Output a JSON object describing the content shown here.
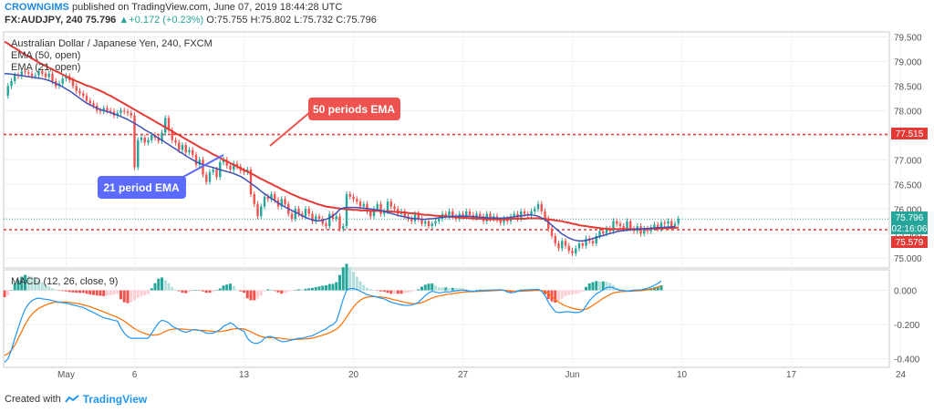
{
  "header": {
    "author": "CROWNGIMS",
    "published_text": "published on TradingView.com, June 07, 2019 18:44:28 UTC",
    "symbol": "FX:AUDJPY, 240",
    "last": "75.796",
    "change_arrow": "▲",
    "change": "+0.172 (+0.23%)",
    "ohlc": [
      "O:75.755",
      "H:75.802",
      "L:75.732",
      "C:75.796"
    ]
  },
  "legend": {
    "instrument": "Australian Dollar / Japanese Yen, 240, FXCM",
    "ema50": "EMA (50, open)",
    "ema21": "EMA (21, open)"
  },
  "annotations": {
    "ema50_callout": "50 periods EMA",
    "ema21_callout": "21 period EMA"
  },
  "badges": {
    "resistance": "77.515",
    "price": "75.796",
    "countdown": "02:16:06",
    "support": "75.579"
  },
  "macd_legend": "MACD (12, 26, close, 9)",
  "footer": {
    "created_with": "Created with",
    "brand": "TradingView"
  },
  "colors": {
    "up": "#26a69a",
    "down": "#ef5350",
    "ema50": "#e53935",
    "ema21": "#3f51b5",
    "macd": "#2196f3",
    "signal": "#ff6d00",
    "level": "#e53935",
    "callout_red": "#ef5350",
    "callout_blue": "#5c6bff"
  },
  "chart_data": [
    {
      "type": "line",
      "name": "price",
      "ylim": [
        74.8,
        79.6
      ],
      "y_ticks": [
        "79.500",
        "79.000",
        "78.500",
        "78.000",
        "77.500",
        "77.000",
        "76.500",
        "76.000",
        "75.500",
        "75.000"
      ],
      "y_tick_values": [
        79.5,
        79.0,
        78.5,
        78.0,
        77.5,
        77.0,
        76.5,
        76.0,
        75.5,
        75.0
      ],
      "x_ticks": [
        "May",
        "6",
        "13",
        "20",
        "27",
        "Jun",
        "10",
        "17",
        "24"
      ],
      "x_tick_index": [
        18,
        38,
        70,
        102,
        134,
        166,
        198,
        230,
        262
      ],
      "horizontal_levels": [
        77.515,
        75.579
      ],
      "close": [
        78.3,
        78.5,
        78.6,
        78.72,
        78.7,
        78.8,
        78.78,
        78.75,
        78.7,
        78.72,
        78.8,
        78.75,
        78.68,
        78.75,
        78.6,
        78.5,
        78.55,
        78.65,
        78.7,
        78.62,
        78.5,
        78.4,
        78.35,
        78.3,
        78.2,
        78.15,
        78.1,
        78.0,
        77.98,
        78.05,
        78.0,
        77.98,
        77.9,
        77.95,
        78.0,
        77.98,
        77.95,
        77.9,
        76.85,
        77.4,
        77.45,
        77.35,
        77.4,
        77.5,
        77.45,
        77.38,
        77.55,
        77.85,
        77.6,
        77.4,
        77.35,
        77.2,
        77.3,
        77.15,
        77.2,
        77.1,
        76.9,
        77.0,
        76.7,
        76.55,
        76.75,
        76.8,
        76.65,
        76.95,
        77.0,
        76.88,
        76.8,
        76.92,
        76.86,
        76.78,
        76.75,
        76.8,
        76.3,
        76.1,
        75.85,
        76.05,
        76.25,
        76.2,
        76.3,
        76.18,
        76.05,
        76.2,
        76.1,
        75.9,
        75.8,
        76.0,
        75.9,
        75.85,
        76.0,
        75.9,
        75.75,
        75.85,
        75.8,
        75.7,
        75.65,
        75.9,
        75.8,
        75.85,
        75.6,
        75.65,
        76.3,
        76.25,
        76.2,
        76.15,
        76.05,
        76.1,
        75.95,
        75.85,
        76.0,
        76.1,
        75.9,
        75.95,
        76.15,
        76.05,
        76.0,
        75.9,
        75.95,
        75.85,
        75.8,
        75.75,
        75.9,
        75.8,
        75.7,
        75.75,
        75.65,
        75.7,
        75.75,
        75.8,
        75.9,
        75.85,
        75.95,
        75.85,
        75.8,
        75.9,
        75.85,
        75.95,
        75.88,
        75.82,
        75.9,
        75.85,
        75.75,
        75.9,
        75.8,
        75.85,
        75.78,
        75.72,
        75.8,
        75.75,
        75.85,
        75.9,
        75.8,
        75.95,
        75.9,
        75.88,
        75.95,
        76.0,
        76.1,
        75.95,
        75.8,
        75.6,
        75.45,
        75.3,
        75.2,
        75.35,
        75.25,
        75.15,
        75.1,
        75.2,
        75.3,
        75.25,
        75.4,
        75.35,
        75.3,
        75.45,
        75.55,
        75.5,
        75.6,
        75.55,
        75.75,
        75.7,
        75.65,
        75.6,
        75.75,
        75.6,
        75.55,
        75.65,
        75.5,
        75.6,
        75.55,
        75.62,
        75.68,
        75.6,
        75.72,
        75.7,
        75.75,
        75.65,
        75.7,
        75.8
      ],
      "ema21": [
        78.75,
        78.75,
        78.74,
        78.73,
        78.72,
        78.71,
        78.7,
        78.69,
        78.68,
        78.67,
        78.66,
        78.65,
        78.63,
        78.61,
        78.58,
        78.55,
        78.52,
        78.48,
        78.44,
        78.4,
        78.35,
        78.3,
        78.25,
        78.2,
        78.15,
        78.12,
        78.08,
        78.05,
        78.02,
        78.0,
        77.98,
        77.96,
        77.93,
        77.91,
        77.88,
        77.85,
        77.82,
        77.78,
        77.74,
        77.7,
        77.66,
        77.61,
        77.57,
        77.53,
        77.48,
        77.44,
        77.4,
        77.35,
        77.31,
        77.26,
        77.22,
        77.17,
        77.13,
        77.08,
        77.04,
        77.0,
        76.96,
        76.93,
        76.9,
        76.88,
        76.86,
        76.84,
        76.82,
        76.8,
        76.78,
        76.76,
        76.74,
        76.72,
        76.69,
        76.66,
        76.62,
        76.57,
        76.52,
        76.47,
        76.42,
        76.36,
        76.31,
        76.26,
        76.21,
        76.17,
        76.12,
        76.08,
        76.04,
        76.0,
        75.97,
        75.93,
        75.9,
        75.86,
        75.83,
        75.8,
        75.78,
        75.76,
        75.76,
        75.77,
        75.79,
        75.82,
        75.86,
        75.92,
        75.99,
        76.02,
        76.03,
        76.03,
        76.03,
        76.03,
        76.02,
        76.02,
        76.01,
        76.0,
        75.99,
        75.98,
        75.97,
        75.95,
        75.93,
        75.91,
        75.89,
        75.87,
        75.85,
        75.84,
        75.82,
        75.81,
        75.8,
        75.8,
        75.79,
        75.79,
        75.8,
        75.8,
        75.81,
        75.82,
        75.83,
        75.84,
        75.84,
        75.85,
        75.85,
        75.85,
        75.85,
        75.85,
        75.85,
        75.84,
        75.84,
        75.83,
        75.83,
        75.82,
        75.82,
        75.82,
        75.81,
        75.81,
        75.82,
        75.82,
        75.83,
        75.84,
        75.85,
        75.86,
        75.87,
        75.88,
        75.88,
        75.87,
        75.85,
        75.82,
        75.78,
        75.73,
        75.67,
        75.61,
        75.55,
        75.49,
        75.45,
        75.41,
        75.38,
        75.36,
        75.35,
        75.35,
        75.36,
        75.38,
        75.4,
        75.42,
        75.44,
        75.46,
        75.48,
        75.5,
        75.52,
        75.54,
        75.55,
        75.56,
        75.57,
        75.58,
        75.58,
        75.59,
        75.59,
        75.6,
        75.6,
        75.61,
        75.61,
        75.62,
        75.62,
        75.63,
        75.63,
        75.64,
        75.64
      ],
      "ema50": [
        79.4,
        79.36,
        79.31,
        79.27,
        79.23,
        79.18,
        79.14,
        79.1,
        79.06,
        79.02,
        78.98,
        78.94,
        78.91,
        78.87,
        78.84,
        78.8,
        78.77,
        78.73,
        78.7,
        78.66,
        78.63,
        78.6,
        78.57,
        78.54,
        78.51,
        78.49,
        78.46,
        78.43,
        78.4,
        78.37,
        78.33,
        78.3,
        78.26,
        78.22,
        78.18,
        78.14,
        78.1,
        78.06,
        78.02,
        77.98,
        77.94,
        77.9,
        77.86,
        77.82,
        77.78,
        77.74,
        77.7,
        77.66,
        77.62,
        77.58,
        77.54,
        77.5,
        77.46,
        77.42,
        77.38,
        77.34,
        77.3,
        77.26,
        77.22,
        77.19,
        77.15,
        77.11,
        77.08,
        77.04,
        77.0,
        76.97,
        76.93,
        76.9,
        76.86,
        76.83,
        76.79,
        76.76,
        76.72,
        76.69,
        76.65,
        76.61,
        76.58,
        76.54,
        76.51,
        76.47,
        76.44,
        76.4,
        76.37,
        76.33,
        76.3,
        76.27,
        76.24,
        76.21,
        76.19,
        76.16,
        76.14,
        76.11,
        76.09,
        76.07,
        76.05,
        76.04,
        76.03,
        76.02,
        76.01,
        76.0,
        75.99,
        75.99,
        75.98,
        75.98,
        75.97,
        75.97,
        75.97,
        75.96,
        75.96,
        75.96,
        75.96,
        75.95,
        75.95,
        75.95,
        75.94,
        75.94,
        75.93,
        75.93,
        75.92,
        75.91,
        75.91,
        75.9,
        75.89,
        75.88,
        75.88,
        75.87,
        75.86,
        75.86,
        75.85,
        75.85,
        75.84,
        75.84,
        75.83,
        75.83,
        75.82,
        75.82,
        75.81,
        75.81,
        75.8,
        75.8,
        75.8,
        75.79,
        75.79,
        75.79,
        75.79,
        75.79,
        75.79,
        75.79,
        75.8,
        75.8,
        75.8,
        75.8,
        75.8,
        75.81,
        75.81,
        75.81,
        75.81,
        75.8,
        75.8,
        75.79,
        75.78,
        75.77,
        75.76,
        75.75,
        75.73,
        75.72,
        75.7,
        75.69,
        75.67,
        75.66,
        75.65,
        75.64,
        75.63,
        75.62,
        75.61,
        75.6,
        75.6,
        75.59,
        75.59,
        75.59,
        75.59,
        75.59,
        75.59,
        75.59,
        75.59,
        75.59,
        75.59,
        75.59,
        75.59,
        75.6,
        75.6,
        75.6,
        75.6,
        75.61,
        75.61,
        75.61,
        75.62,
        75.62
      ]
    },
    {
      "type": "line",
      "name": "macd",
      "ylim": [
        -0.45,
        0.12
      ],
      "y_ticks": [
        "0.000",
        "-0.200",
        "-0.400"
      ],
      "y_tick_values": [
        0.0,
        -0.2,
        -0.4
      ],
      "macd": [
        -0.42,
        -0.4,
        -0.35,
        -0.28,
        -0.22,
        -0.16,
        -0.11,
        -0.08,
        -0.06,
        -0.05,
        -0.045,
        -0.05,
        -0.052,
        -0.055,
        -0.06,
        -0.065,
        -0.07,
        -0.072,
        -0.075,
        -0.08,
        -0.085,
        -0.09,
        -0.095,
        -0.1,
        -0.11,
        -0.12,
        -0.13,
        -0.14,
        -0.15,
        -0.16,
        -0.165,
        -0.17,
        -0.175,
        -0.18,
        -0.22,
        -0.25,
        -0.27,
        -0.28,
        -0.28,
        -0.28,
        -0.28,
        -0.28,
        -0.28,
        -0.25,
        -0.22,
        -0.19,
        -0.175,
        -0.18,
        -0.19,
        -0.21,
        -0.22,
        -0.23,
        -0.24,
        -0.245,
        -0.24,
        -0.23,
        -0.23,
        -0.235,
        -0.24,
        -0.25,
        -0.252,
        -0.25,
        -0.24,
        -0.23,
        -0.21,
        -0.2,
        -0.19,
        -0.2,
        -0.22,
        -0.23,
        -0.24,
        -0.28,
        -0.3,
        -0.31,
        -0.31,
        -0.3,
        -0.28,
        -0.27,
        -0.27,
        -0.28,
        -0.29,
        -0.3,
        -0.3,
        -0.295,
        -0.29,
        -0.285,
        -0.28,
        -0.28,
        -0.275,
        -0.27,
        -0.265,
        -0.255,
        -0.245,
        -0.235,
        -0.225,
        -0.21,
        -0.2,
        -0.18,
        -0.12,
        -0.05,
        0.0,
        0.01,
        0.01,
        0.005,
        -0.005,
        -0.015,
        -0.025,
        -0.03,
        -0.035,
        -0.04,
        -0.045,
        -0.05,
        -0.06,
        -0.07,
        -0.075,
        -0.08,
        -0.085,
        -0.087,
        -0.088,
        -0.086,
        -0.08,
        -0.07,
        -0.05,
        -0.03,
        -0.015,
        -0.005,
        -0.01,
        -0.015,
        -0.012,
        -0.008,
        -0.01,
        -0.005,
        -0.003,
        0.0,
        0.002,
        -0.002,
        -0.005,
        -0.006,
        -0.004,
        -0.002,
        -0.001,
        0.0,
        0.001,
        0.002,
        0.003,
        0.004,
        0.0,
        -0.01,
        -0.015,
        -0.012,
        -0.005,
        0.0,
        0.002,
        0.003,
        0.004,
        0.005,
        0.006,
        -0.005,
        -0.03,
        -0.07,
        -0.1,
        -0.125,
        -0.13,
        -0.128,
        -0.125,
        -0.125,
        -0.128,
        -0.13,
        -0.128,
        -0.12,
        -0.09,
        -0.06,
        -0.04,
        -0.02,
        -0.01,
        0.005,
        0.015,
        0.02,
        0.015,
        0.005,
        0.0,
        -0.002,
        -0.004,
        -0.003,
        0.0,
        0.002,
        0.003,
        0.008,
        0.012,
        0.02,
        0.03,
        0.04,
        0.055
      ],
      "signal": [
        -0.38,
        -0.37,
        -0.35,
        -0.32,
        -0.28,
        -0.24,
        -0.2,
        -0.165,
        -0.14,
        -0.12,
        -0.105,
        -0.095,
        -0.085,
        -0.078,
        -0.072,
        -0.07,
        -0.068,
        -0.068,
        -0.069,
        -0.07,
        -0.073,
        -0.076,
        -0.08,
        -0.085,
        -0.09,
        -0.096,
        -0.103,
        -0.11,
        -0.118,
        -0.126,
        -0.134,
        -0.142,
        -0.15,
        -0.158,
        -0.168,
        -0.18,
        -0.195,
        -0.21,
        -0.224,
        -0.235,
        -0.245,
        -0.252,
        -0.258,
        -0.262,
        -0.262,
        -0.258,
        -0.25,
        -0.24,
        -0.232,
        -0.228,
        -0.225,
        -0.225,
        -0.226,
        -0.228,
        -0.23,
        -0.231,
        -0.232,
        -0.233,
        -0.234,
        -0.236,
        -0.238,
        -0.24,
        -0.241,
        -0.241,
        -0.238,
        -0.234,
        -0.229,
        -0.225,
        -0.224,
        -0.224,
        -0.226,
        -0.233,
        -0.242,
        -0.252,
        -0.262,
        -0.27,
        -0.275,
        -0.276,
        -0.275,
        -0.276,
        -0.278,
        -0.281,
        -0.284,
        -0.286,
        -0.287,
        -0.287,
        -0.286,
        -0.285,
        -0.284,
        -0.282,
        -0.279,
        -0.274,
        -0.268,
        -0.262,
        -0.255,
        -0.247,
        -0.238,
        -0.228,
        -0.21,
        -0.185,
        -0.155,
        -0.125,
        -0.098,
        -0.075,
        -0.058,
        -0.046,
        -0.04,
        -0.037,
        -0.036,
        -0.037,
        -0.039,
        -0.041,
        -0.045,
        -0.05,
        -0.055,
        -0.06,
        -0.065,
        -0.07,
        -0.074,
        -0.077,
        -0.078,
        -0.076,
        -0.071,
        -0.063,
        -0.054,
        -0.045,
        -0.038,
        -0.033,
        -0.029,
        -0.025,
        -0.022,
        -0.019,
        -0.016,
        -0.013,
        -0.01,
        -0.009,
        -0.008,
        -0.008,
        -0.007,
        -0.006,
        -0.005,
        -0.004,
        -0.003,
        -0.002,
        -0.001,
        0.0,
        0.0,
        -0.002,
        -0.004,
        -0.006,
        -0.006,
        -0.005,
        -0.004,
        -0.003,
        -0.002,
        -0.001,
        0.0,
        -0.001,
        -0.007,
        -0.019,
        -0.035,
        -0.053,
        -0.069,
        -0.081,
        -0.091,
        -0.098,
        -0.104,
        -0.109,
        -0.113,
        -0.114,
        -0.11,
        -0.1,
        -0.088,
        -0.074,
        -0.061,
        -0.047,
        -0.035,
        -0.024,
        -0.016,
        -0.011,
        -0.008,
        -0.007,
        -0.006,
        -0.005,
        -0.004,
        -0.003,
        -0.002,
        0.0,
        0.003,
        0.007,
        0.012,
        0.018,
        0.026
      ]
    }
  ]
}
